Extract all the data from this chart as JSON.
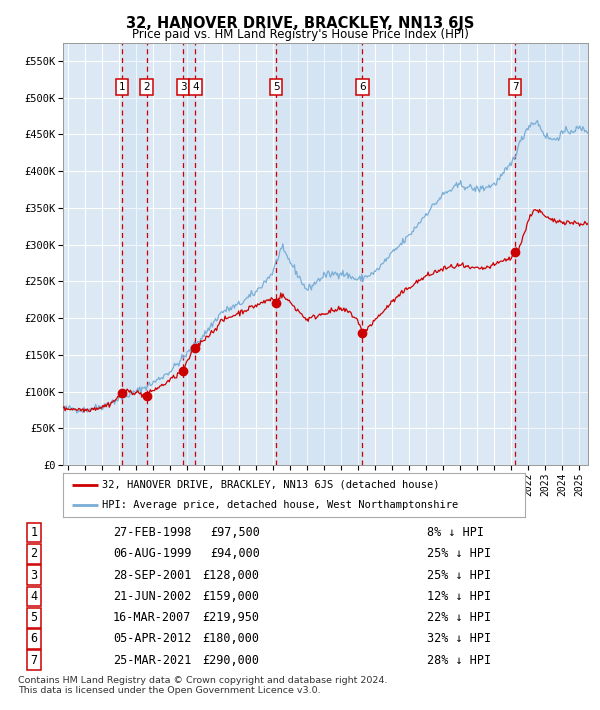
{
  "title": "32, HANOVER DRIVE, BRACKLEY, NN13 6JS",
  "subtitle": "Price paid vs. HM Land Registry's House Price Index (HPI)",
  "ylabel_ticks": [
    "£0",
    "£50K",
    "£100K",
    "£150K",
    "£200K",
    "£250K",
    "£300K",
    "£350K",
    "£400K",
    "£450K",
    "£500K",
    "£550K"
  ],
  "ytick_values": [
    0,
    50000,
    100000,
    150000,
    200000,
    250000,
    300000,
    350000,
    400000,
    450000,
    500000,
    550000
  ],
  "xlim_start": 1994.7,
  "xlim_end": 2025.5,
  "ylim": [
    0,
    575000
  ],
  "background_color": "#dce9f5",
  "grid_color": "#ffffff",
  "sale_dates": [
    1998.15,
    1999.6,
    2001.74,
    2002.47,
    2007.21,
    2012.27,
    2021.23
  ],
  "sale_prices": [
    97500,
    94000,
    128000,
    159000,
    219950,
    180000,
    290000
  ],
  "sale_labels": [
    "1",
    "2",
    "3",
    "4",
    "5",
    "6",
    "7"
  ],
  "red_line_color": "#cc0000",
  "blue_line_color": "#7aaed6",
  "marker_color": "#cc0000",
  "dashed_line_color": "#cc0000",
  "legend_entries": [
    "32, HANOVER DRIVE, BRACKLEY, NN13 6JS (detached house)",
    "HPI: Average price, detached house, West Northamptonshire"
  ],
  "table_data": [
    [
      "1",
      "27-FEB-1998",
      "£97,500",
      "8% ↓ HPI"
    ],
    [
      "2",
      "06-AUG-1999",
      "£94,000",
      "25% ↓ HPI"
    ],
    [
      "3",
      "28-SEP-2001",
      "£128,000",
      "25% ↓ HPI"
    ],
    [
      "4",
      "21-JUN-2002",
      "£159,000",
      "12% ↓ HPI"
    ],
    [
      "5",
      "16-MAR-2007",
      "£219,950",
      "22% ↓ HPI"
    ],
    [
      "6",
      "05-APR-2012",
      "£180,000",
      "32% ↓ HPI"
    ],
    [
      "7",
      "25-MAR-2021",
      "£290,000",
      "28% ↓ HPI"
    ]
  ],
  "footer": "Contains HM Land Registry data © Crown copyright and database right 2024.\nThis data is licensed under the Open Government Licence v3.0."
}
